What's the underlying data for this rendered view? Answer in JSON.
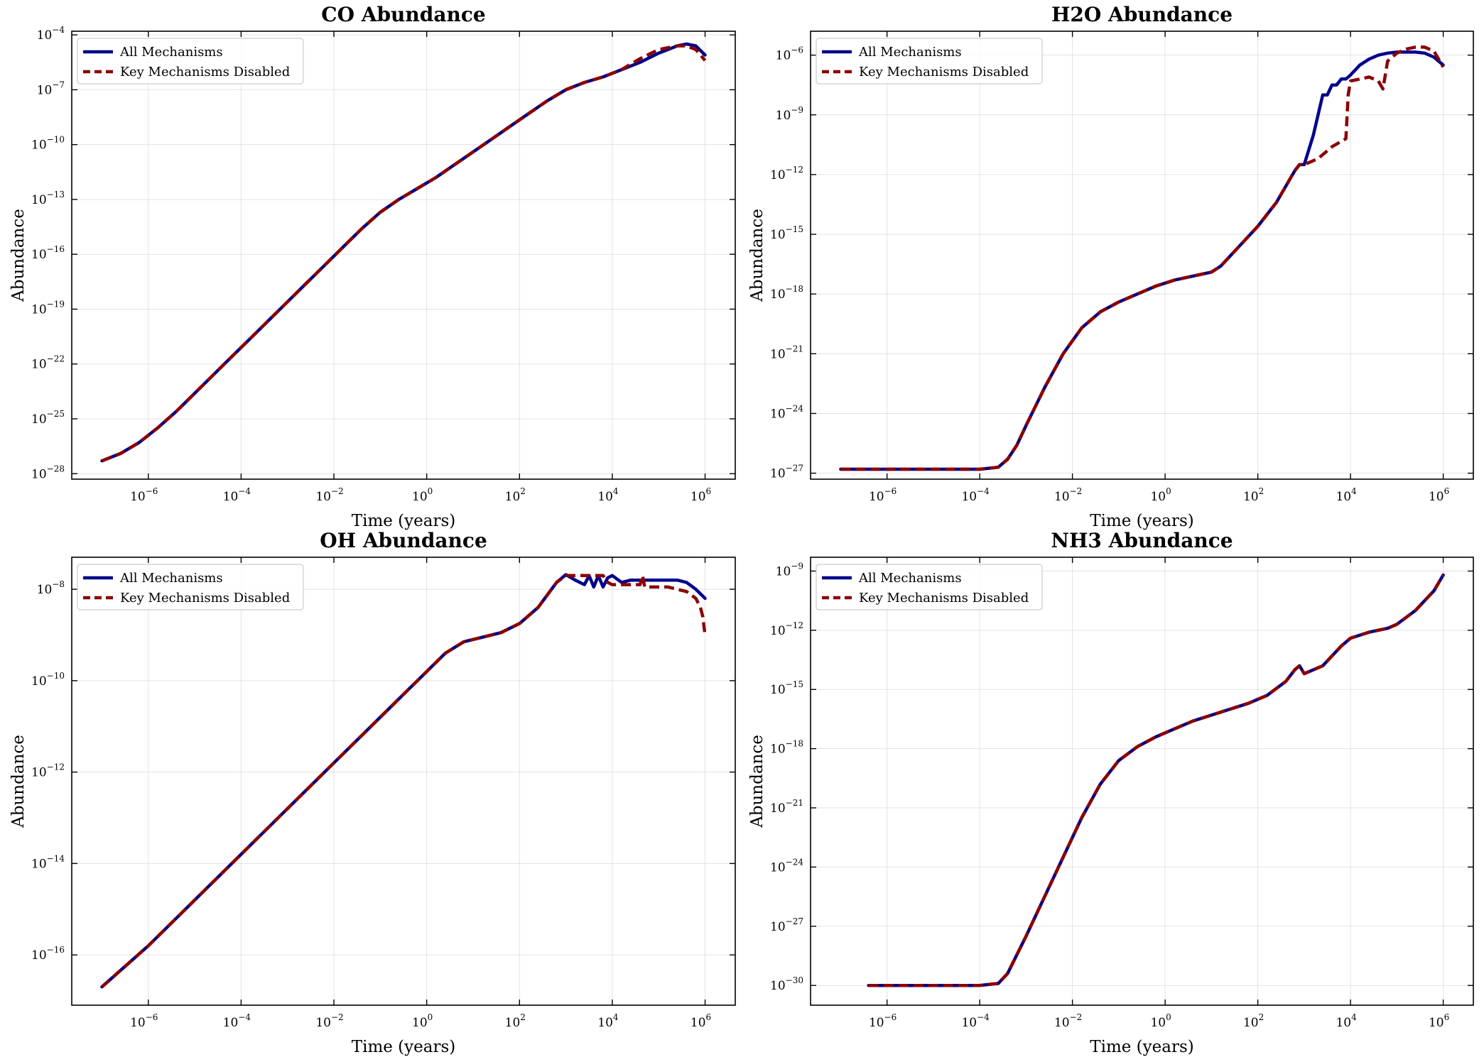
{
  "colors": {
    "all_mechanisms": "#00008b",
    "key_disabled": "#8b0000"
  },
  "chart_data": [
    {
      "type": "line",
      "title": "CO Abundance",
      "xlabel": "Time (years)",
      "ylabel": "Abundance",
      "xscale": "log",
      "yscale": "log",
      "xlim": [
        1e-07,
        1000000.0
      ],
      "xticks": [
        -6,
        -4,
        -2,
        0,
        2,
        4,
        6
      ],
      "ylim_log10": [
        -28.3,
        -3.8
      ],
      "yticks": [
        -28,
        -25,
        -22,
        -19,
        -16,
        -13,
        -10,
        -7,
        -4
      ],
      "grid": true,
      "legend": "upper-left",
      "series": [
        {
          "name": "All Mechanisms",
          "style": "solid",
          "log10_x": [
            -7,
            -6.6,
            -6.2,
            -5.8,
            -5.4,
            -5,
            -4.6,
            -4.2,
            -3.8,
            -3.4,
            -3,
            -2.6,
            -2.2,
            -1.8,
            -1.4,
            -1,
            -0.6,
            -0.2,
            0.2,
            0.6,
            1,
            1.4,
            1.8,
            2.2,
            2.6,
            3,
            3.4,
            3.8,
            4.2,
            4.6,
            5,
            5.4,
            5.6,
            5.8,
            6
          ],
          "log10_y": [
            -27.3,
            -26.9,
            -26.3,
            -25.5,
            -24.6,
            -23.6,
            -22.6,
            -21.6,
            -20.6,
            -19.6,
            -18.6,
            -17.6,
            -16.6,
            -15.6,
            -14.6,
            -13.7,
            -13.0,
            -12.4,
            -11.8,
            -11.1,
            -10.4,
            -9.7,
            -9.0,
            -8.3,
            -7.6,
            -7.0,
            -6.6,
            -6.3,
            -5.9,
            -5.5,
            -5.0,
            -4.6,
            -4.5,
            -4.6,
            -5.1
          ]
        },
        {
          "name": "Key Mechanisms Disabled",
          "style": "dashed",
          "log10_x": [
            -7,
            -6.6,
            -6.2,
            -5.8,
            -5.4,
            -5,
            -4.6,
            -4.2,
            -3.8,
            -3.4,
            -3,
            -2.6,
            -2.2,
            -1.8,
            -1.4,
            -1,
            -0.6,
            -0.2,
            0.2,
            0.6,
            1,
            1.4,
            1.8,
            2.2,
            2.6,
            3,
            3.4,
            3.8,
            4.2,
            4.6,
            5,
            5.4,
            5.6,
            5.8,
            6
          ],
          "log10_y": [
            -27.3,
            -26.9,
            -26.3,
            -25.5,
            -24.6,
            -23.6,
            -22.6,
            -21.6,
            -20.6,
            -19.6,
            -18.6,
            -17.6,
            -16.6,
            -15.6,
            -14.6,
            -13.7,
            -13.0,
            -12.4,
            -11.8,
            -11.1,
            -10.4,
            -9.7,
            -9.0,
            -8.3,
            -7.6,
            -7.0,
            -6.6,
            -6.3,
            -5.9,
            -5.3,
            -4.8,
            -4.6,
            -4.6,
            -4.8,
            -5.4
          ]
        }
      ]
    },
    {
      "type": "line",
      "title": "H2O Abundance",
      "xlabel": "Time (years)",
      "ylabel": "Abundance",
      "xscale": "log",
      "yscale": "log",
      "xlim": [
        1e-07,
        1000000.0
      ],
      "xticks": [
        -6,
        -4,
        -2,
        0,
        2,
        4,
        6
      ],
      "ylim_log10": [
        -27.3,
        -4.8
      ],
      "yticks": [
        -27,
        -24,
        -21,
        -18,
        -15,
        -12,
        -9,
        -6
      ],
      "grid": true,
      "legend": "upper-left",
      "series": [
        {
          "name": "All Mechanisms",
          "style": "solid",
          "log10_x": [
            -7,
            -6,
            -5,
            -4,
            -3.6,
            -3.4,
            -3.2,
            -3,
            -2.6,
            -2.2,
            -1.8,
            -1.4,
            -1,
            -0.6,
            -0.2,
            0.2,
            0.6,
            1,
            1.2,
            1.6,
            2,
            2.4,
            2.8,
            2.9,
            3,
            3.2,
            3.4,
            3.5,
            3.6,
            3.7,
            3.8,
            3.9,
            4,
            4.2,
            4.4,
            4.6,
            4.8,
            5,
            5.4,
            5.6,
            5.8,
            6
          ],
          "log10_y": [
            -26.8,
            -26.8,
            -26.8,
            -26.8,
            -26.7,
            -26.3,
            -25.6,
            -24.6,
            -22.7,
            -21.0,
            -19.7,
            -18.9,
            -18.4,
            -18.0,
            -17.6,
            -17.3,
            -17.1,
            -16.9,
            -16.6,
            -15.6,
            -14.6,
            -13.4,
            -11.8,
            -11.5,
            -11.5,
            -10.0,
            -8.0,
            -8.0,
            -7.5,
            -7.5,
            -7.2,
            -7.2,
            -7.0,
            -6.5,
            -6.2,
            -6.0,
            -5.9,
            -5.85,
            -5.85,
            -5.9,
            -6.1,
            -6.5
          ]
        },
        {
          "name": "Key Mechanisms Disabled",
          "style": "dashed",
          "log10_x": [
            -7,
            -6,
            -5,
            -4,
            -3.6,
            -3.4,
            -3.2,
            -3,
            -2.6,
            -2.2,
            -1.8,
            -1.4,
            -1,
            -0.6,
            -0.2,
            0.2,
            0.6,
            1,
            1.2,
            1.6,
            2,
            2.4,
            2.8,
            2.9,
            3,
            3.3,
            3.6,
            3.9,
            3.95,
            4,
            4.2,
            4.4,
            4.6,
            4.7,
            4.8,
            5,
            5.2,
            5.4,
            5.6,
            5.8,
            5.9,
            6
          ],
          "log10_y": [
            -26.8,
            -26.8,
            -26.8,
            -26.8,
            -26.7,
            -26.3,
            -25.6,
            -24.6,
            -22.7,
            -21.0,
            -19.7,
            -18.9,
            -18.4,
            -18.0,
            -17.6,
            -17.3,
            -17.1,
            -16.9,
            -16.6,
            -15.6,
            -14.6,
            -13.4,
            -11.8,
            -11.5,
            -11.5,
            -11.2,
            -10.6,
            -10.2,
            -8.0,
            -7.3,
            -7.2,
            -7.1,
            -7.3,
            -7.7,
            -6.3,
            -5.9,
            -5.7,
            -5.6,
            -5.6,
            -5.8,
            -6.2,
            -6.6
          ]
        }
      ]
    },
    {
      "type": "line",
      "title": "OH Abundance",
      "xlabel": "Time (years)",
      "ylabel": "Abundance",
      "xscale": "log",
      "yscale": "log",
      "xlim": [
        1e-07,
        1000000.0
      ],
      "xticks": [
        -6,
        -4,
        -2,
        0,
        2,
        4,
        6
      ],
      "ylim_log10": [
        -17.1,
        -7.3
      ],
      "yticks": [
        -16,
        -14,
        -12,
        -10,
        -8
      ],
      "grid": true,
      "legend": "upper-left",
      "series": [
        {
          "name": "All Mechanisms",
          "style": "solid",
          "log10_x": [
            -7,
            -6,
            -5,
            -4,
            -3,
            -2,
            -1,
            -0.4,
            0,
            0.4,
            0.8,
            1.2,
            1.6,
            2,
            2.4,
            2.8,
            3,
            3.2,
            3.4,
            3.5,
            3.6,
            3.7,
            3.8,
            3.9,
            4,
            4.2,
            4.4,
            4.8,
            5.2,
            5.4,
            5.6,
            5.8,
            6
          ],
          "log10_y": [
            -16.7,
            -15.8,
            -14.8,
            -13.8,
            -12.8,
            -11.8,
            -10.8,
            -10.2,
            -9.8,
            -9.4,
            -9.15,
            -9.05,
            -8.95,
            -8.75,
            -8.4,
            -7.85,
            -7.68,
            -7.8,
            -7.9,
            -7.7,
            -7.95,
            -7.7,
            -7.95,
            -7.75,
            -7.7,
            -7.85,
            -7.8,
            -7.8,
            -7.8,
            -7.8,
            -7.85,
            -8.0,
            -8.2
          ]
        },
        {
          "name": "Key Mechanisms Disabled",
          "style": "dashed",
          "log10_x": [
            -7,
            -6,
            -5,
            -4,
            -3,
            -2,
            -1,
            -0.4,
            0,
            0.4,
            0.8,
            1.2,
            1.6,
            2,
            2.4,
            2.8,
            3,
            3.2,
            3.5,
            3.8,
            3.9,
            4,
            4.4,
            4.6,
            4.65,
            4.7,
            4.8,
            5.2,
            5.6,
            5.8,
            5.9,
            5.95,
            6
          ],
          "log10_y": [
            -16.7,
            -15.8,
            -14.8,
            -13.8,
            -12.8,
            -11.8,
            -10.8,
            -10.2,
            -9.8,
            -9.4,
            -9.15,
            -9.05,
            -8.95,
            -8.75,
            -8.4,
            -7.85,
            -7.7,
            -7.7,
            -7.7,
            -7.7,
            -7.85,
            -7.9,
            -7.9,
            -7.9,
            -7.7,
            -7.95,
            -7.95,
            -7.95,
            -8.05,
            -8.2,
            -8.4,
            -8.6,
            -9.0
          ]
        }
      ]
    },
    {
      "type": "line",
      "title": "NH3 Abundance",
      "xlabel": "Time (years)",
      "ylabel": "Abundance",
      "xscale": "log",
      "yscale": "log",
      "xlim": [
        1e-07,
        1000000.0
      ],
      "xticks": [
        -6,
        -4,
        -2,
        0,
        2,
        4,
        6
      ],
      "ylim_log10": [
        -31.0,
        -8.3
      ],
      "yticks": [
        -30,
        -27,
        -24,
        -21,
        -18,
        -15,
        -12,
        -9
      ],
      "grid": true,
      "legend": "upper-left",
      "series": [
        {
          "name": "All Mechanisms",
          "style": "solid",
          "log10_x": [
            -6.4,
            -5,
            -4,
            -3.6,
            -3.4,
            -3,
            -2.6,
            -2.2,
            -1.8,
            -1.4,
            -1,
            -0.6,
            -0.2,
            0.2,
            0.6,
            1,
            1.4,
            1.8,
            2.2,
            2.6,
            2.8,
            2.9,
            3,
            3.4,
            3.8,
            4,
            4.4,
            4.8,
            5,
            5.4,
            5.8,
            6
          ],
          "log10_y": [
            -30.0,
            -30.0,
            -30.0,
            -29.9,
            -29.4,
            -27.5,
            -25.5,
            -23.5,
            -21.5,
            -19.8,
            -18.6,
            -17.9,
            -17.4,
            -17.0,
            -16.6,
            -16.3,
            -16.0,
            -15.7,
            -15.3,
            -14.6,
            -14.0,
            -13.8,
            -14.2,
            -13.8,
            -12.8,
            -12.4,
            -12.1,
            -11.9,
            -11.7,
            -11.0,
            -10.0,
            -9.2
          ]
        },
        {
          "name": "Key Mechanisms Disabled",
          "style": "dashed",
          "log10_x": [
            -6.4,
            -5,
            -4,
            -3.6,
            -3.4,
            -3,
            -2.6,
            -2.2,
            -1.8,
            -1.4,
            -1,
            -0.6,
            -0.2,
            0.2,
            0.6,
            1,
            1.4,
            1.8,
            2.2,
            2.6,
            2.8,
            2.9,
            3,
            3.4,
            3.8,
            4,
            4.4,
            4.8,
            5,
            5.4,
            5.8,
            6
          ],
          "log10_y": [
            -30.0,
            -30.0,
            -30.0,
            -29.9,
            -29.4,
            -27.5,
            -25.5,
            -23.5,
            -21.5,
            -19.8,
            -18.6,
            -17.9,
            -17.4,
            -17.0,
            -16.6,
            -16.3,
            -16.0,
            -15.7,
            -15.3,
            -14.6,
            -14.0,
            -13.8,
            -14.2,
            -13.8,
            -12.8,
            -12.4,
            -12.1,
            -11.9,
            -11.7,
            -11.0,
            -10.0,
            -9.2
          ]
        }
      ]
    }
  ]
}
